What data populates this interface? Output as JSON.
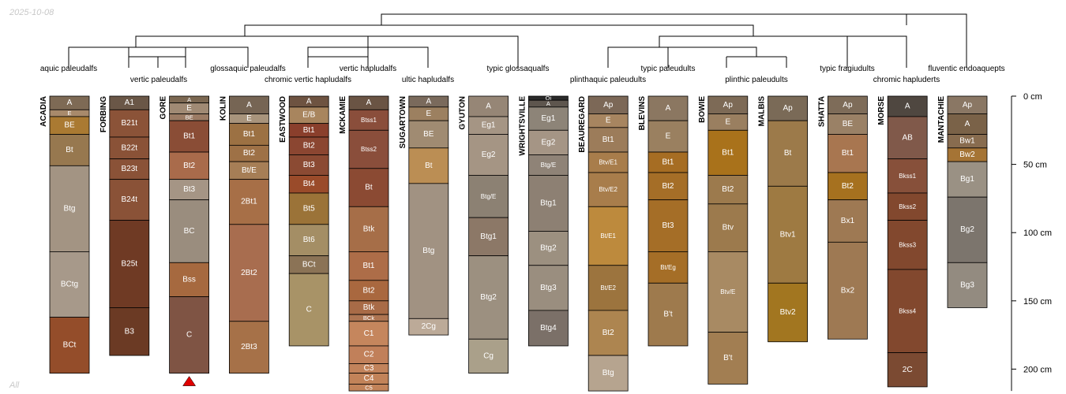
{
  "date_label": "2025-10-08",
  "corner_label": "All",
  "chart_data": {
    "type": "soil_profile_sketch",
    "depth_unit": "cm",
    "depth_axis": {
      "ticks": [
        0,
        50,
        100,
        150,
        200
      ],
      "tick_labels": [
        "0 cm",
        "50 cm",
        "100 cm",
        "150 cm",
        "200 cm"
      ],
      "max_depth": 216
    },
    "taxa_labels": [
      "aquic paleudalfs",
      "vertic paleudalfs",
      "glossaquic paleudalfs",
      "chromic vertic hapludalfs",
      "vertic hapludalfs",
      "ultic hapludalfs",
      "typic glossaqualfs",
      "plinthaquic paleudults",
      "typic paleudults",
      "plinthic paleudults",
      "typic fragiudults",
      "chromic hapluderts",
      "fluventic endoaquepts"
    ],
    "profiles": [
      {
        "name": "ACADIA",
        "horizons": [
          {
            "name": "A",
            "top": 0,
            "bottom": 10,
            "color": "#7e6a55"
          },
          {
            "name": "E",
            "top": 10,
            "bottom": 15,
            "color": "#a88a6b"
          },
          {
            "name": "BE",
            "top": 15,
            "bottom": 28,
            "color": "#aa7a32"
          },
          {
            "name": "Bt",
            "top": 28,
            "bottom": 51,
            "color": "#97784f"
          },
          {
            "name": "Btg",
            "top": 51,
            "bottom": 114,
            "color": "#a39483"
          },
          {
            "name": "BCtg",
            "top": 114,
            "bottom": 162,
            "color": "#a7998a"
          },
          {
            "name": "BCt",
            "top": 162,
            "bottom": 203,
            "color": "#944d2a"
          }
        ]
      },
      {
        "name": "FORBING",
        "horizons": [
          {
            "name": "A1",
            "top": 0,
            "bottom": 10,
            "color": "#6a5747"
          },
          {
            "name": "B21t",
            "top": 10,
            "bottom": 30,
            "color": "#8b5338"
          },
          {
            "name": "B22t",
            "top": 30,
            "bottom": 46,
            "color": "#8a5237"
          },
          {
            "name": "B23t",
            "top": 46,
            "bottom": 61,
            "color": "#8a5237"
          },
          {
            "name": "B24t",
            "top": 61,
            "bottom": 91,
            "color": "#8a5237"
          },
          {
            "name": "B25t",
            "top": 91,
            "bottom": 155,
            "color": "#6f3a24"
          },
          {
            "name": "B3",
            "top": 155,
            "bottom": 190,
            "color": "#6b3a24"
          }
        ]
      },
      {
        "name": "GORE",
        "truncated": true,
        "horizons": [
          {
            "name": "A",
            "top": 0,
            "bottom": 5,
            "color": "#7b6751"
          },
          {
            "name": "E",
            "top": 5,
            "bottom": 13,
            "color": "#a08a74"
          },
          {
            "name": "BE",
            "top": 13,
            "bottom": 18,
            "color": "#9b7b64"
          },
          {
            "name": "Bt1",
            "top": 18,
            "bottom": 41,
            "color": "#8a4d36"
          },
          {
            "name": "Bt2",
            "top": 41,
            "bottom": 61,
            "color": "#a96b4b"
          },
          {
            "name": "Bt3",
            "top": 61,
            "bottom": 76,
            "color": "#a59585"
          },
          {
            "name": "BC",
            "top": 76,
            "bottom": 122,
            "color": "#9a8d7e"
          },
          {
            "name": "Bss",
            "top": 122,
            "bottom": 147,
            "color": "#a6693f"
          },
          {
            "name": "C",
            "top": 147,
            "bottom": 203,
            "color": "#7f5444"
          }
        ]
      },
      {
        "name": "KOLIN",
        "horizons": [
          {
            "name": "A",
            "top": 0,
            "bottom": 13,
            "color": "#766554"
          },
          {
            "name": "E",
            "top": 13,
            "bottom": 20,
            "color": "#a8947c"
          },
          {
            "name": "Bt1",
            "top": 20,
            "bottom": 36,
            "color": "#9c7143"
          },
          {
            "name": "Bt2",
            "top": 36,
            "bottom": 48,
            "color": "#9e7146"
          },
          {
            "name": "Bt/E",
            "top": 48,
            "bottom": 61,
            "color": "#a67e56"
          },
          {
            "name": "2Bt1",
            "top": 61,
            "bottom": 94,
            "color": "#a76f47"
          },
          {
            "name": "2Bt2",
            "top": 94,
            "bottom": 165,
            "color": "#a86d4f"
          },
          {
            "name": "2Bt3",
            "top": 165,
            "bottom": 203,
            "color": "#a67148"
          }
        ]
      },
      {
        "name": "EASTWOOD",
        "horizons": [
          {
            "name": "A",
            "top": 0,
            "bottom": 8,
            "color": "#6e5341"
          },
          {
            "name": "E/B",
            "top": 8,
            "bottom": 20,
            "color": "#a8855e"
          },
          {
            "name": "Bt1",
            "top": 20,
            "bottom": 30,
            "color": "#8a3f2c"
          },
          {
            "name": "Bt2",
            "top": 30,
            "bottom": 43,
            "color": "#8b4631"
          },
          {
            "name": "Bt3",
            "top": 43,
            "bottom": 58,
            "color": "#8b4a33"
          },
          {
            "name": "Bt4",
            "top": 58,
            "bottom": 71,
            "color": "#9a4b2a"
          },
          {
            "name": "Bt5",
            "top": 71,
            "bottom": 94,
            "color": "#9b7338"
          },
          {
            "name": "Bt6",
            "top": 94,
            "bottom": 117,
            "color": "#a48e65"
          },
          {
            "name": "BCt",
            "top": 117,
            "bottom": 130,
            "color": "#8b7356"
          },
          {
            "name": "C",
            "top": 130,
            "bottom": 183,
            "color": "#a89367"
          }
        ]
      },
      {
        "name": "MCKAMIE",
        "horizons": [
          {
            "name": "A",
            "top": 0,
            "bottom": 10,
            "color": "#6a5444"
          },
          {
            "name": "Btss1",
            "top": 10,
            "bottom": 25,
            "color": "#8a4e3b"
          },
          {
            "name": "Btss2",
            "top": 25,
            "bottom": 53,
            "color": "#8a4e3b"
          },
          {
            "name": "Bt",
            "top": 53,
            "bottom": 81,
            "color": "#8b4a33"
          },
          {
            "name": "Btk",
            "top": 81,
            "bottom": 114,
            "color": "#a66e48"
          },
          {
            "name": "Bt1",
            "top": 114,
            "bottom": 135,
            "color": "#ad6d48"
          },
          {
            "name": "Bt2",
            "top": 135,
            "bottom": 150,
            "color": "#a9683f"
          },
          {
            "name": "Btk",
            "top": 150,
            "bottom": 160,
            "color": "#a86b47"
          },
          {
            "name": "BCk",
            "top": 160,
            "bottom": 165,
            "color": "#ae7552"
          },
          {
            "name": "C1",
            "top": 165,
            "bottom": 183,
            "color": "#c5865d"
          },
          {
            "name": "C2",
            "top": 183,
            "bottom": 196,
            "color": "#c1805a"
          },
          {
            "name": "C3",
            "top": 196,
            "bottom": 203,
            "color": "#c2835b"
          },
          {
            "name": "C4",
            "top": 203,
            "bottom": 211,
            "color": "#c28359"
          },
          {
            "name": "C5",
            "top": 211,
            "bottom": 216,
            "color": "#c28359"
          }
        ]
      },
      {
        "name": "SUGARTOWN",
        "horizons": [
          {
            "name": "A",
            "top": 0,
            "bottom": 8,
            "color": "#7a6a5c"
          },
          {
            "name": "E",
            "top": 8,
            "bottom": 18,
            "color": "#9c8060"
          },
          {
            "name": "BE",
            "top": 18,
            "bottom": 38,
            "color": "#a08b72"
          },
          {
            "name": "Bt",
            "top": 38,
            "bottom": 64,
            "color": "#bb8e54"
          },
          {
            "name": "Btg",
            "top": 64,
            "bottom": 163,
            "color": "#a19282"
          },
          {
            "name": "2Cg",
            "top": 163,
            "bottom": 175,
            "color": "#bcaa98"
          }
        ]
      },
      {
        "name": "GYUTON",
        "horizons": [
          {
            "name": "A",
            "top": 0,
            "bottom": 15,
            "color": "#968676"
          },
          {
            "name": "Eg1",
            "top": 15,
            "bottom": 28,
            "color": "#a59584"
          },
          {
            "name": "Eg2",
            "top": 28,
            "bottom": 58,
            "color": "#a59584"
          },
          {
            "name": "Btg/E",
            "top": 58,
            "bottom": 89,
            "color": "#8c8173"
          },
          {
            "name": "Btg1",
            "top": 89,
            "bottom": 117,
            "color": "#8c7867"
          },
          {
            "name": "Btg2",
            "top": 117,
            "bottom": 178,
            "color": "#9c9080"
          },
          {
            "name": "Cg",
            "top": 178,
            "bottom": 203,
            "color": "#aaa08a"
          }
        ]
      },
      {
        "name": "WRIGHTSVILLE",
        "horizons": [
          {
            "name": "Oi",
            "top": 0,
            "bottom": 3,
            "color": "#2a2a2a"
          },
          {
            "name": "A",
            "top": 3,
            "bottom": 8,
            "color": "#5e564e"
          },
          {
            "name": "Eg1",
            "top": 8,
            "bottom": 25,
            "color": "#8d8478"
          },
          {
            "name": "Eg2",
            "top": 25,
            "bottom": 43,
            "color": "#a59585"
          },
          {
            "name": "Btg/E",
            "top": 43,
            "bottom": 58,
            "color": "#8f8377"
          },
          {
            "name": "Btg1",
            "top": 58,
            "bottom": 99,
            "color": "#8d8073"
          },
          {
            "name": "Btg2",
            "top": 99,
            "bottom": 124,
            "color": "#9c9080"
          },
          {
            "name": "Btg3",
            "top": 124,
            "bottom": 157,
            "color": "#9a8e7f"
          },
          {
            "name": "Btg4",
            "top": 157,
            "bottom": 183,
            "color": "#7b7068"
          }
        ]
      },
      {
        "name": "BEAUREGARD",
        "horizons": [
          {
            "name": "Ap",
            "top": 0,
            "bottom": 13,
            "color": "#7c6857"
          },
          {
            "name": "E",
            "top": 13,
            "bottom": 23,
            "color": "#a78560"
          },
          {
            "name": "Bt1",
            "top": 23,
            "bottom": 41,
            "color": "#9c7c5a"
          },
          {
            "name": "Btv/E1",
            "top": 41,
            "bottom": 56,
            "color": "#a87d4b"
          },
          {
            "name": "Btv/E2",
            "top": 56,
            "bottom": 81,
            "color": "#a87d4b"
          },
          {
            "name": "Bt/E1",
            "top": 81,
            "bottom": 124,
            "color": "#bd8a3d"
          },
          {
            "name": "Bt/E2",
            "top": 124,
            "bottom": 157,
            "color": "#9c743e"
          },
          {
            "name": "Bt2",
            "top": 157,
            "bottom": 190,
            "color": "#ad8550"
          },
          {
            "name": "Btg",
            "top": 190,
            "bottom": 216,
            "color": "#b6a48f"
          }
        ]
      },
      {
        "name": "BLEVINS",
        "horizons": [
          {
            "name": "A",
            "top": 0,
            "bottom": 18,
            "color": "#8b7761"
          },
          {
            "name": "E",
            "top": 18,
            "bottom": 41,
            "color": "#9a8060"
          },
          {
            "name": "Bt1",
            "top": 41,
            "bottom": 56,
            "color": "#a66d23"
          },
          {
            "name": "Bt2",
            "top": 56,
            "bottom": 76,
            "color": "#a56e27"
          },
          {
            "name": "Bt3",
            "top": 76,
            "bottom": 114,
            "color": "#a56e27"
          },
          {
            "name": "Bt/Eg",
            "top": 114,
            "bottom": 137,
            "color": "#a56e27"
          },
          {
            "name": "B't",
            "top": 137,
            "bottom": 183,
            "color": "#9e7a4d"
          }
        ]
      },
      {
        "name": "BOWIE",
        "horizons": [
          {
            "name": "Ap",
            "top": 0,
            "bottom": 13,
            "color": "#7d6a56"
          },
          {
            "name": "E",
            "top": 13,
            "bottom": 25,
            "color": "#9a7f60"
          },
          {
            "name": "Bt1",
            "top": 25,
            "bottom": 58,
            "color": "#a9721b"
          },
          {
            "name": "Bt2",
            "top": 58,
            "bottom": 79,
            "color": "#9c7a4d"
          },
          {
            "name": "Btv",
            "top": 79,
            "bottom": 114,
            "color": "#9c7a4d"
          },
          {
            "name": "Btv/E",
            "top": 114,
            "bottom": 173,
            "color": "#a88a63"
          },
          {
            "name": "B't",
            "top": 173,
            "bottom": 211,
            "color": "#a27e52"
          }
        ]
      },
      {
        "name": "MALBIS",
        "horizons": [
          {
            "name": "Ap",
            "top": 0,
            "bottom": 18,
            "color": "#7a6a57"
          },
          {
            "name": "Bt",
            "top": 18,
            "bottom": 66,
            "color": "#9c7a4a"
          },
          {
            "name": "Btv1",
            "top": 66,
            "bottom": 137,
            "color": "#9e7a42"
          },
          {
            "name": "Btv2",
            "top": 137,
            "bottom": 180,
            "color": "#a27620"
          }
        ]
      },
      {
        "name": "SHATTA",
        "horizons": [
          {
            "name": "Ap",
            "top": 0,
            "bottom": 13,
            "color": "#7e6c59"
          },
          {
            "name": "BE",
            "top": 13,
            "bottom": 28,
            "color": "#9a8166"
          },
          {
            "name": "Bt1",
            "top": 28,
            "bottom": 56,
            "color": "#a87650"
          },
          {
            "name": "Bt2",
            "top": 56,
            "bottom": 76,
            "color": "#a6711f"
          },
          {
            "name": "Bx1",
            "top": 76,
            "bottom": 107,
            "color": "#9e7953"
          },
          {
            "name": "Bx2",
            "top": 107,
            "bottom": 178,
            "color": "#9e7953"
          }
        ]
      },
      {
        "name": "MORSE",
        "horizons": [
          {
            "name": "A",
            "top": 0,
            "bottom": 15,
            "color": "#4f4740"
          },
          {
            "name": "AB",
            "top": 15,
            "bottom": 46,
            "color": "#80594a"
          },
          {
            "name": "Bkss1",
            "top": 46,
            "bottom": 71,
            "color": "#87503a"
          },
          {
            "name": "Bkss2",
            "top": 71,
            "bottom": 91,
            "color": "#82482e"
          },
          {
            "name": "Bkss3",
            "top": 91,
            "bottom": 127,
            "color": "#82482e"
          },
          {
            "name": "Bkss4",
            "top": 127,
            "bottom": 188,
            "color": "#82482e"
          },
          {
            "name": "2C",
            "top": 188,
            "bottom": 213,
            "color": "#7b4a32"
          }
        ]
      },
      {
        "name": "MANTACHIE",
        "horizons": [
          {
            "name": "Ap",
            "top": 0,
            "bottom": 13,
            "color": "#8a7764"
          },
          {
            "name": "A",
            "top": 13,
            "bottom": 28,
            "color": "#7a6248"
          },
          {
            "name": "Bw1",
            "top": 28,
            "bottom": 38,
            "color": "#886c4f"
          },
          {
            "name": "Bw2",
            "top": 38,
            "bottom": 48,
            "color": "#a57435"
          },
          {
            "name": "Bg1",
            "top": 48,
            "bottom": 74,
            "color": "#9a9184"
          },
          {
            "name": "Bg2",
            "top": 74,
            "bottom": 122,
            "color": "#7c756d"
          },
          {
            "name": "Bg3",
            "top": 122,
            "bottom": 155,
            "color": "#938b80"
          }
        ]
      }
    ]
  }
}
